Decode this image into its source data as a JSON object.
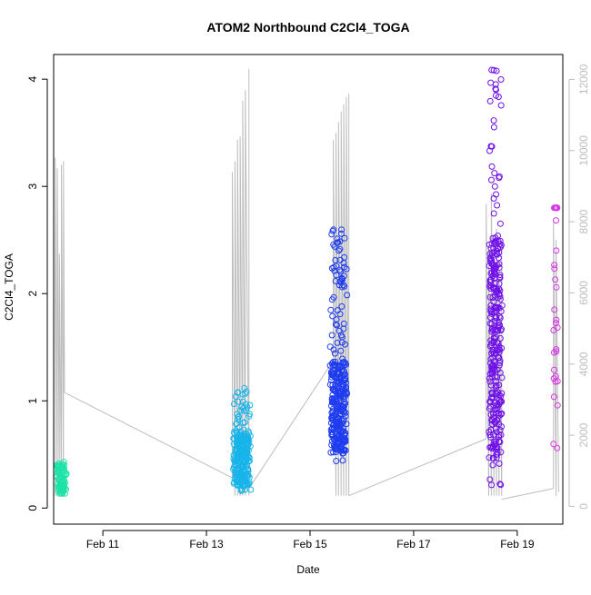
{
  "chart_data": {
    "type": "scatter",
    "title": "ATOM2 Northbound C2Cl4_TOGA",
    "xlabel": "Date",
    "ylabel": "C2Cl4_TOGA",
    "x_axis": {
      "range_days": [
        10.05,
        19.88
      ],
      "ticks": [
        {
          "day": 11,
          "label": "Feb 11"
        },
        {
          "day": 13,
          "label": "Feb 13"
        },
        {
          "day": 15,
          "label": "Feb 15"
        },
        {
          "day": 17,
          "label": "Feb 17"
        },
        {
          "day": 19,
          "label": "Feb 19"
        }
      ]
    },
    "y_left": {
      "range": [
        -0.15,
        4.23
      ],
      "ticks": [
        0,
        1,
        2,
        3,
        4
      ]
    },
    "y_right": {
      "range": [
        -500,
        12700
      ],
      "ticks": [
        0,
        2000,
        4000,
        6000,
        8000,
        10000,
        12000
      ],
      "color": "#bdbdbd"
    },
    "grid": false,
    "legend": "none",
    "secondary_series": {
      "type": "line",
      "axis": "right",
      "color": "#bdbdbd",
      "segments": [
        {
          "x": [
            10.08,
            10.08,
            10.12,
            10.12,
            10.16,
            10.16,
            10.2,
            10.2,
            10.24,
            10.24,
            10.26
          ],
          "y": [
            300,
            9800,
            300,
            9500,
            300,
            7100,
            300,
            9600,
            300,
            9700,
            3200
          ]
        },
        {
          "x": [
            10.26,
            13.5
          ],
          "y": [
            3200,
            800
          ]
        },
        {
          "x": [
            13.5,
            13.5,
            13.55,
            13.55,
            13.6,
            13.6,
            13.65,
            13.65,
            13.7,
            13.7,
            13.75,
            13.75,
            13.82,
            13.82
          ],
          "y": [
            800,
            9400,
            300,
            9700,
            300,
            10300,
            300,
            10400,
            300,
            11400,
            300,
            11700,
            300,
            12300
          ]
        },
        {
          "x": [
            13.82,
            15.45
          ],
          "y": [
            500,
            4100
          ]
        },
        {
          "x": [
            15.45,
            15.45,
            15.5,
            15.5,
            15.55,
            15.55,
            15.6,
            15.6,
            15.65,
            15.65,
            15.7,
            15.7,
            15.75,
            15.75
          ],
          "y": [
            4100,
            10300,
            300,
            10500,
            300,
            10800,
            300,
            11100,
            300,
            11300,
            300,
            11500,
            300,
            11600
          ]
        },
        {
          "x": [
            15.75,
            18.4
          ],
          "y": [
            300,
            1900
          ]
        },
        {
          "x": [
            18.4,
            18.4,
            18.45,
            18.45,
            18.5,
            18.5,
            18.55,
            18.55,
            18.6,
            18.6,
            18.65,
            18.65,
            18.7,
            18.7
          ],
          "y": [
            1900,
            8500,
            300,
            7200,
            300,
            8800,
            300,
            7500,
            300,
            7800,
            300,
            6800,
            300,
            7400
          ]
        },
        {
          "x": [
            18.7,
            19.7
          ],
          "y": [
            200,
            500
          ]
        },
        {
          "x": [
            19.7,
            19.7,
            19.75,
            19.75,
            19.8
          ],
          "y": [
            500,
            8000,
            300,
            7500,
            400
          ]
        }
      ]
    },
    "series": [
      {
        "name": "",
        "color": "#1de3a8",
        "x_center": 10.2,
        "x_spread": 0.12,
        "count": 80,
        "y_min": 0.1,
        "y_max": 0.43,
        "y_mid": 0.27
      },
      {
        "name": "",
        "color": "#17b4ea",
        "x_center": 13.68,
        "x_spread": 0.18,
        "count": 250,
        "y_min": 0.16,
        "y_max": 1.12,
        "y_mid": 0.47
      },
      {
        "name": "",
        "color": "#1f3cf0",
        "x_center": 15.55,
        "x_spread": 0.18,
        "count": 330,
        "y_min": 0.43,
        "y_max": 2.62,
        "y_mid": 0.95
      },
      {
        "name": "",
        "color": "#7010ea",
        "x_center": 18.58,
        "x_spread": 0.14,
        "count": 300,
        "y_min": 0.2,
        "y_max": 4.1,
        "y_mid": 1.5
      },
      {
        "name": "",
        "color": "#d636e6",
        "x_center": 19.74,
        "x_spread": 0.05,
        "count": 30,
        "y_min": 0.5,
        "y_max": 2.8,
        "y_mid": 2.3
      }
    ]
  }
}
